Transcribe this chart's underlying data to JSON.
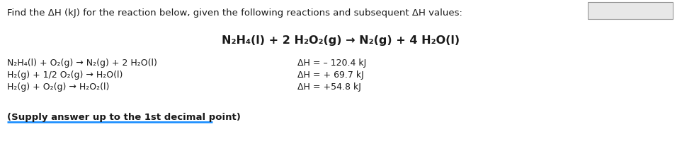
{
  "bg_color": "#ffffff",
  "header_text": "Find the ΔH (kJ) for the reaction below, given the following reactions and subsequent ΔH values:",
  "main_reaction": "N₂H₄(l) + 2 H₂O₂(g) → N₂(g) + 4 H₂O(l)",
  "sub_reactions": [
    "N₂H₄(l) + O₂(g) → N₂(g) + 2 H₂O(l)",
    "H₂(g) + 1/2 O₂(g) → H₂O(l)",
    "H₂(g) + O₂(g) → H₂O₂(l)"
  ],
  "dh_values": [
    "ΔH = – 120.4 kJ",
    "ΔH = + 69.7 kJ",
    "ΔH = +54.8 kJ"
  ],
  "footer_text": "(Supply answer up to the 1st decimal point)",
  "header_fontsize": 9.5,
  "main_fontsize": 11.5,
  "sub_fontsize": 9.0,
  "footer_fontsize": 9.5,
  "text_color": "#1a1a1a",
  "footer_underline_color": "#1e90ff",
  "box_color": "#e8e8e8",
  "box_border_color": "#999999"
}
